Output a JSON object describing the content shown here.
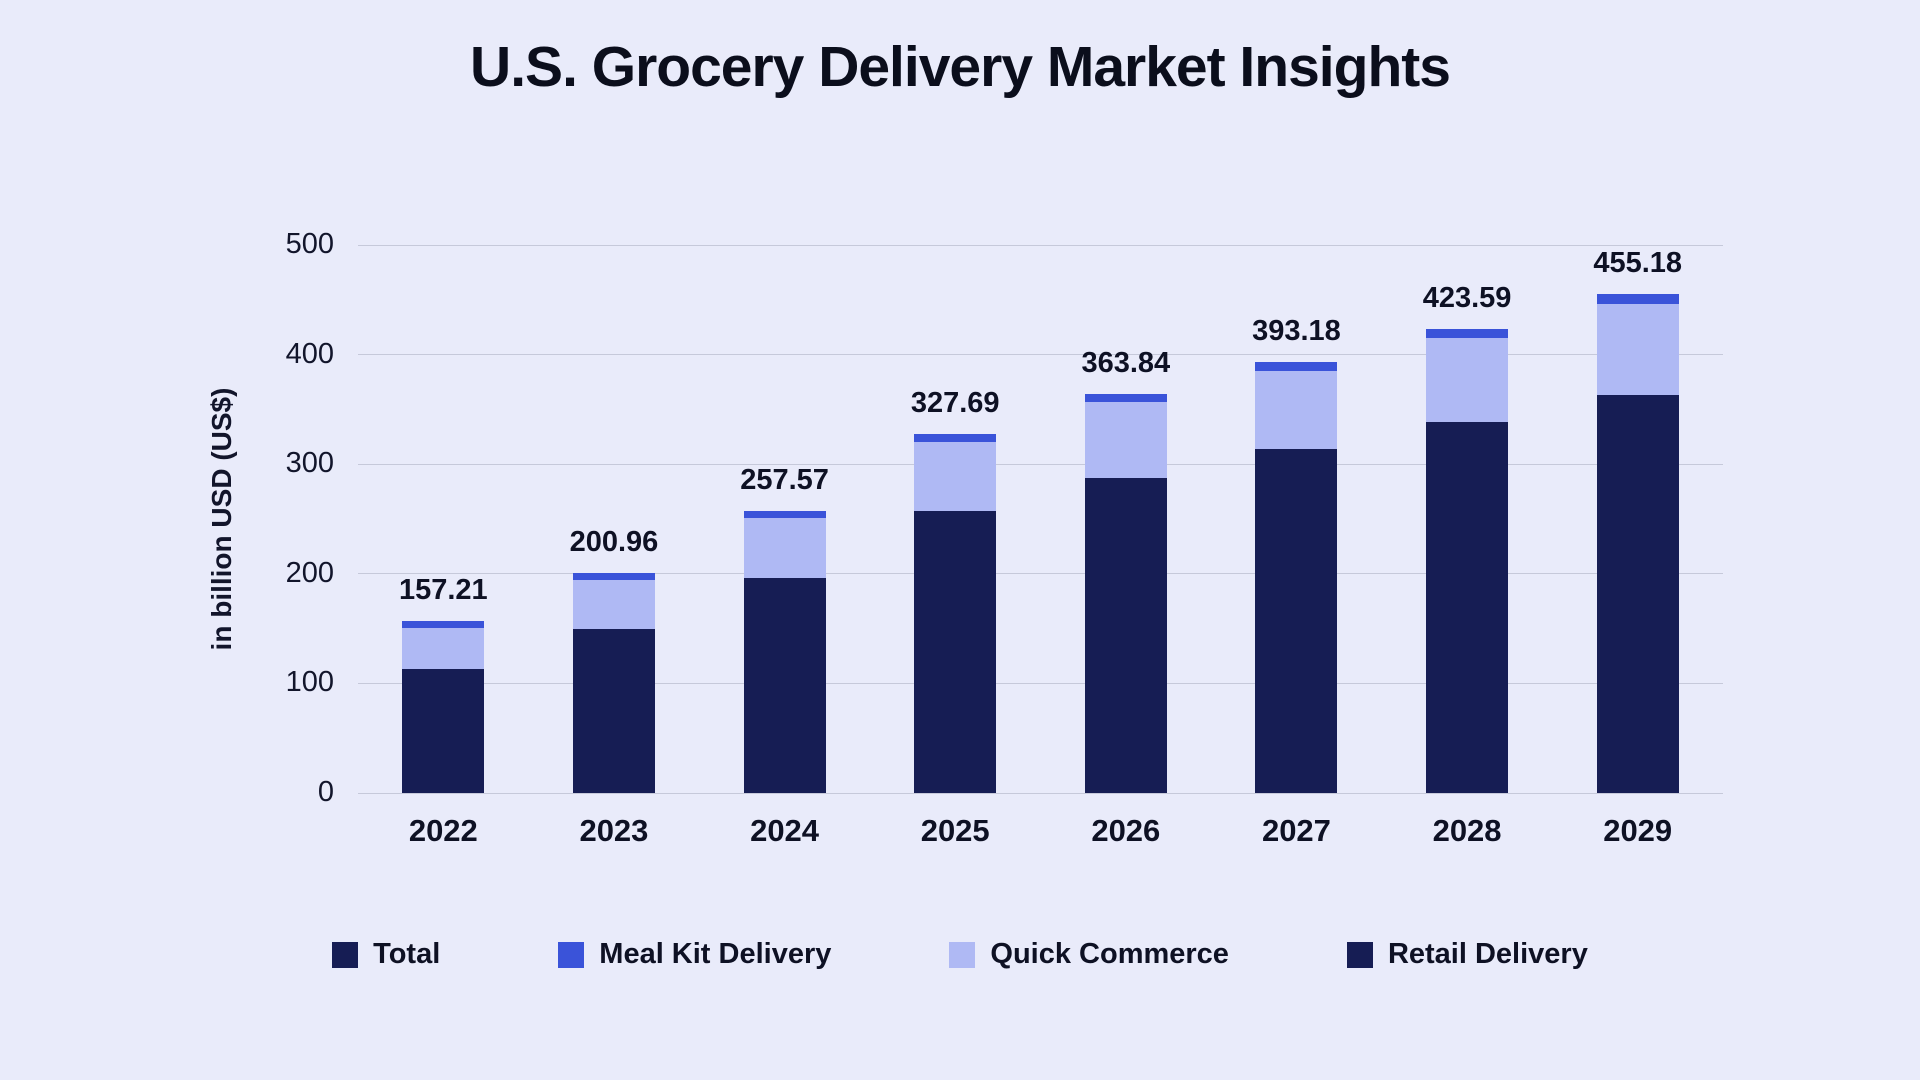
{
  "chart_data": {
    "type": "bar",
    "stacked": true,
    "title": "U.S. Grocery Delivery Market Insights",
    "xlabel": "",
    "ylabel": "in billion USD (US$)",
    "ylim": [
      0,
      500
    ],
    "yticks": [
      0,
      100,
      200,
      300,
      400,
      500
    ],
    "grid": true,
    "legend_position": "bottom",
    "categories": [
      "2022",
      "2023",
      "2024",
      "2025",
      "2026",
      "2027",
      "2028",
      "2029"
    ],
    "totals": [
      157.21,
      200.96,
      257.57,
      327.69,
      363.84,
      393.18,
      423.59,
      455.18
    ],
    "total_labels": [
      "157.21",
      "200.96",
      "257.57",
      "327.69",
      "363.84",
      "393.18",
      "423.59",
      "455.18"
    ],
    "series": [
      {
        "name": "Retail Delivery",
        "color": "#161D54",
        "values": [
          112.9,
          149.5,
          196.5,
          257.5,
          287.5,
          313.5,
          338.5,
          363.5
        ]
      },
      {
        "name": "Quick Commerce",
        "color": "#AFB9F4",
        "values": [
          38.1,
          45.0,
          54.5,
          63.0,
          69.0,
          72.0,
          77.0,
          83.0
        ]
      },
      {
        "name": "Meal Kit Delivery",
        "color": "#3A53D9",
        "values": [
          6.21,
          6.46,
          6.57,
          7.19,
          7.34,
          7.68,
          8.09,
          8.68
        ]
      }
    ],
    "legend": [
      {
        "label": "Total",
        "color": "#161D54"
      },
      {
        "label": "Meal Kit Delivery",
        "color": "#3A53D9"
      },
      {
        "label": "Quick Commerce",
        "color": "#AFB9F4"
      },
      {
        "label": "Retail Delivery",
        "color": "#161D54"
      }
    ]
  },
  "colors": {
    "background": "#E9EBFA",
    "grid": "#C6C9DA",
    "text": "#0E1124"
  }
}
